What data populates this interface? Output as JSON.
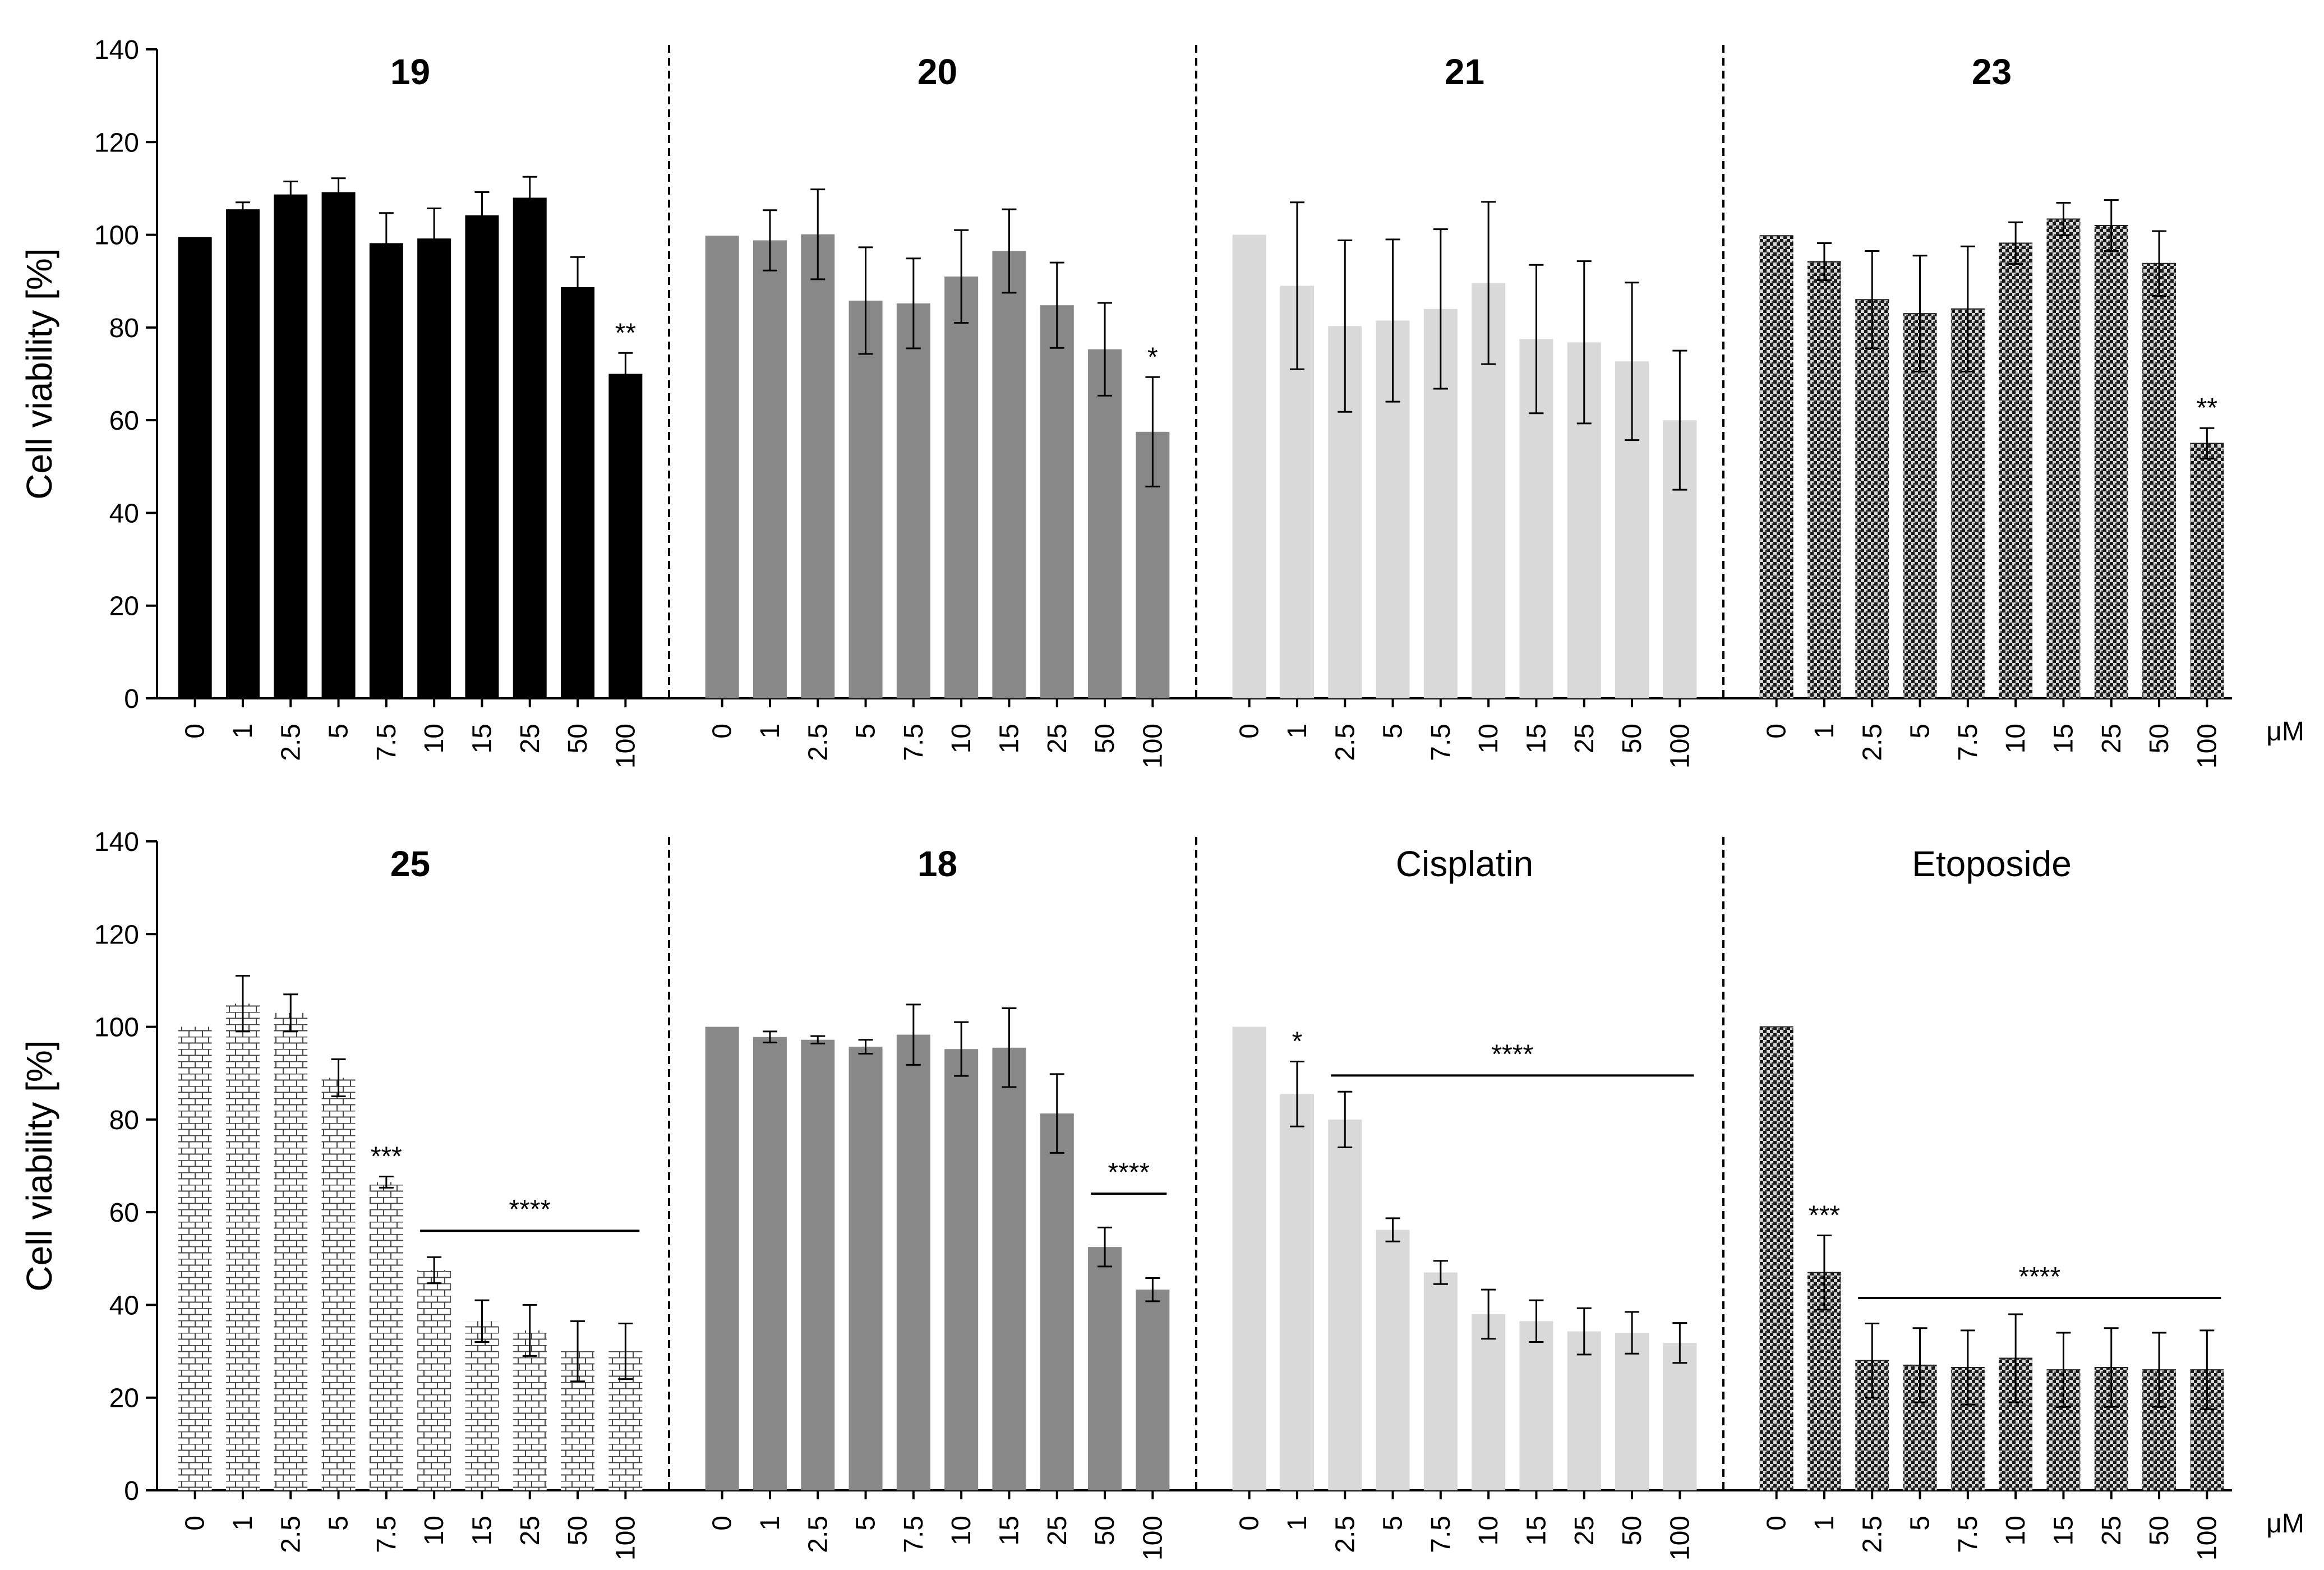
{
  "chart_data": {
    "type": "bar",
    "ylabel": "Cell viability [%]",
    "ylim": [
      0,
      140
    ],
    "yticks": [
      0,
      20,
      40,
      60,
      80,
      100,
      120,
      140
    ],
    "unit_label": "μM",
    "categories": [
      "0",
      "1",
      "2.5",
      "5",
      "7.5",
      "10",
      "15",
      "25",
      "50",
      "100"
    ],
    "rows": [
      {
        "panels": [
          {
            "name": "19",
            "bold": true,
            "color": "#000000",
            "pattern": "none",
            "values": [
              99.5,
              105.5,
              108.7,
              109.2,
              98.2,
              99.2,
              104.2,
              108.0,
              88.7,
              70.0
            ],
            "errors": [
              0,
              1.5,
              2.8,
              3.0,
              6.5,
              6.5,
              5.0,
              4.5,
              6.5,
              4.5
            ],
            "annotations": [
              {
                "index": 9,
                "text": "**"
              }
            ],
            "bracket": null
          },
          {
            "name": "20",
            "bold": true,
            "color": "#888888",
            "pattern": "none",
            "values": [
              99.8,
              98.8,
              100.1,
              85.8,
              85.2,
              91.0,
              96.5,
              84.8,
              75.3,
              57.5
            ],
            "errors": [
              0,
              6.5,
              9.7,
              11.5,
              9.7,
              10.0,
              9.0,
              9.2,
              10.0,
              11.8
            ],
            "annotations": [
              {
                "index": 9,
                "text": "*"
              }
            ],
            "bracket": null
          },
          {
            "name": "21",
            "bold": true,
            "color": "#d9d9d9",
            "pattern": "none",
            "values": [
              100.0,
              89.0,
              80.3,
              81.5,
              84.0,
              89.6,
              77.5,
              76.8,
              72.7,
              60.0
            ],
            "errors": [
              0,
              18.0,
              18.5,
              17.5,
              17.2,
              17.5,
              16.0,
              17.5,
              17.0,
              15.0
            ],
            "annotations": [],
            "bracket": null
          },
          {
            "name": "23",
            "bold": true,
            "color": "#333333",
            "pattern": "dots",
            "values": [
              99.8,
              94.2,
              86.0,
              83.0,
              84.0,
              98.2,
              103.4,
              102.0,
              93.8,
              55.0
            ],
            "errors": [
              0,
              4.0,
              10.5,
              12.5,
              13.5,
              4.5,
              3.5,
              5.5,
              7.0,
              3.3
            ],
            "annotations": [
              {
                "index": 9,
                "text": "**"
              }
            ],
            "bracket": null
          }
        ]
      },
      {
        "panels": [
          {
            "name": "25",
            "bold": true,
            "color": "#555555",
            "pattern": "bricks",
            "values": [
              100.0,
              105.0,
              103.0,
              89.0,
              66.5,
              47.5,
              36.5,
              34.5,
              30.0,
              30.0
            ],
            "errors": [
              0,
              6.0,
              4.0,
              4.0,
              1.2,
              2.8,
              4.5,
              5.5,
              6.5,
              6.0
            ],
            "annotations": [
              {
                "index": 4,
                "text": "***"
              }
            ],
            "bracket": {
              "from": 5,
              "to": 9,
              "y": 56,
              "text": "****"
            }
          },
          {
            "name": "18",
            "bold": true,
            "color": "#888888",
            "pattern": "none",
            "values": [
              100.0,
              97.8,
              97.2,
              95.7,
              98.3,
              95.2,
              95.5,
              81.3,
              52.5,
              43.3
            ],
            "errors": [
              0,
              1.2,
              0.8,
              1.5,
              6.5,
              5.8,
              8.5,
              8.5,
              4.2,
              2.5
            ],
            "annotations": [],
            "bracket": {
              "from": 8,
              "to": 9,
              "y": 64,
              "text": "****"
            }
          },
          {
            "name": "Cisplatin",
            "bold": false,
            "color": "#d9d9d9",
            "pattern": "none",
            "values": [
              100.0,
              85.5,
              80.0,
              56.2,
              47.0,
              38.0,
              36.5,
              34.3,
              34.0,
              31.8
            ],
            "errors": [
              0,
              7.0,
              6.0,
              2.5,
              2.5,
              5.3,
              4.5,
              5.0,
              4.5,
              4.3
            ],
            "annotations": [
              {
                "index": 1,
                "text": "*"
              }
            ],
            "bracket": {
              "from": 2,
              "to": 9,
              "y": 89.5,
              "text": "****"
            }
          },
          {
            "name": "Etoposide",
            "bold": false,
            "color": "#333333",
            "pattern": "dots",
            "values": [
              100.0,
              47.0,
              28.0,
              27.0,
              26.5,
              28.5,
              26.0,
              26.5,
              26.0,
              26.0
            ],
            "errors": [
              0,
              8.0,
              8.0,
              8.0,
              8.0,
              9.5,
              8.0,
              8.5,
              8.0,
              8.5
            ],
            "annotations": [
              {
                "index": 1,
                "text": "***"
              }
            ],
            "bracket": {
              "from": 2,
              "to": 9,
              "y": 41.5,
              "text": "****"
            }
          }
        ]
      }
    ]
  }
}
